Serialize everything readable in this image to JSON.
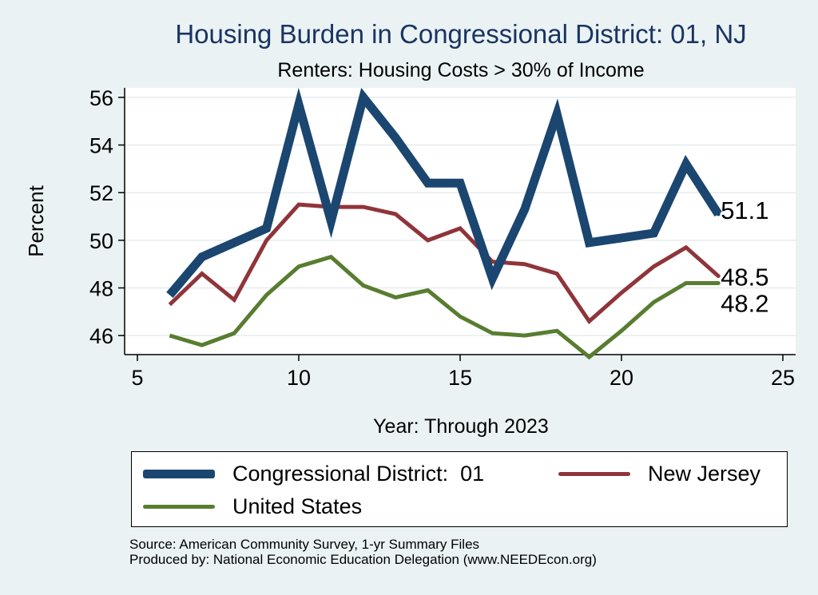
{
  "chart_data": {
    "type": "line",
    "title": "Housing Burden in Congressional District:  01, NJ",
    "subtitle": "Renters: Housing Costs > 30% of Income",
    "xlabel": "Year: Through 2023",
    "ylabel": "Percent",
    "xlim": [
      5,
      25
    ],
    "ylim": [
      45.2,
      56.4
    ],
    "xticks": [
      5,
      10,
      15,
      20,
      25
    ],
    "yticks": [
      46,
      48,
      50,
      52,
      54,
      56
    ],
    "grid": true,
    "legend_position": "bottom",
    "series": [
      {
        "name": "Congressional District:  01",
        "color": "#1a4670",
        "x": [
          6,
          7,
          8,
          9,
          10,
          11,
          12,
          13,
          14,
          15,
          16,
          17,
          18,
          19,
          20,
          21,
          22,
          23
        ],
        "values": [
          47.7,
          49.3,
          49.9,
          50.5,
          55.7,
          50.8,
          56.0,
          54.3,
          52.4,
          52.4,
          48.4,
          51.3,
          55.3,
          49.9,
          50.1,
          50.3,
          53.2,
          51.1
        ],
        "end_label": "51.1"
      },
      {
        "name": "New Jersey",
        "color": "#8f353a",
        "x": [
          6,
          7,
          8,
          9,
          10,
          11,
          12,
          13,
          14,
          15,
          16,
          17,
          18,
          19,
          20,
          21,
          22,
          23
        ],
        "values": [
          47.3,
          48.6,
          47.5,
          50.0,
          51.5,
          51.4,
          51.4,
          51.1,
          50.0,
          50.5,
          49.1,
          49.0,
          48.6,
          46.6,
          47.8,
          48.9,
          49.7,
          48.5
        ],
        "end_label": "48.5"
      },
      {
        "name": "United States",
        "color": "#587d30",
        "x": [
          6,
          7,
          8,
          9,
          10,
          11,
          12,
          13,
          14,
          15,
          16,
          17,
          18,
          19,
          20,
          21,
          22,
          23
        ],
        "values": [
          46.0,
          45.6,
          46.1,
          47.7,
          48.9,
          49.3,
          48.1,
          47.6,
          47.9,
          46.8,
          46.1,
          46.0,
          46.2,
          45.1,
          46.2,
          47.4,
          48.2,
          48.2
        ],
        "end_label": "48.2"
      }
    ]
  },
  "source": {
    "line1": "Source: American Community Survey, 1-yr Summary Files",
    "line2": "Produced by: National Economic Education Delegation (www.NEEDEcon.org)"
  }
}
